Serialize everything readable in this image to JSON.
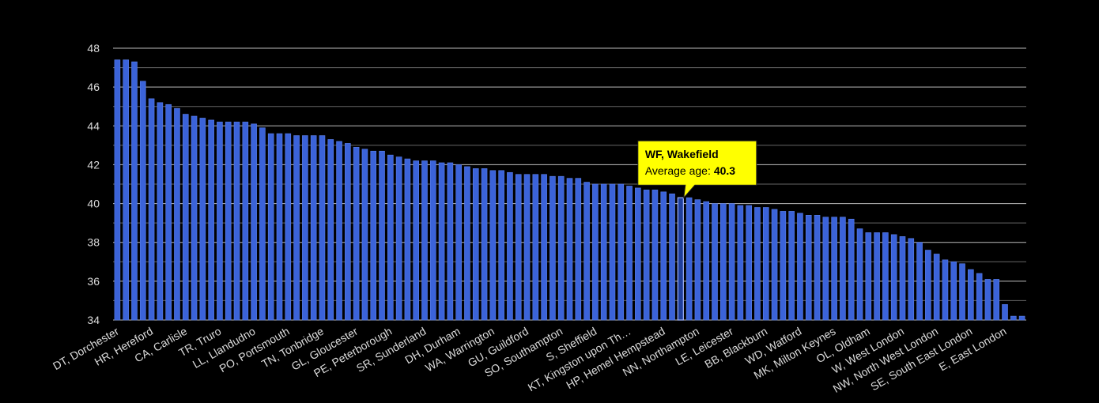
{
  "chart_data": {
    "type": "bar",
    "categories": [
      "DT, Dorchester",
      null,
      null,
      null,
      "HR, Hereford",
      null,
      null,
      null,
      "CA, Carlisle",
      null,
      null,
      null,
      "TR, Truro",
      null,
      null,
      null,
      "LL, Llandudno",
      null,
      null,
      null,
      "PO, Portsmouth",
      null,
      null,
      null,
      "TN, Tonbridge",
      null,
      null,
      null,
      "GL, Gloucester",
      null,
      null,
      null,
      "PE, Peterborough",
      null,
      null,
      null,
      "SR, Sunderland",
      null,
      null,
      null,
      "DH, Durham",
      null,
      null,
      null,
      "WA, Warrington",
      null,
      null,
      null,
      "GU, Guildford",
      null,
      null,
      null,
      "SO, Southampton",
      null,
      null,
      null,
      "S, Sheffield",
      null,
      null,
      null,
      "KT, Kingston upon Th…",
      null,
      null,
      null,
      "HP, Hemel Hempstead",
      null,
      null,
      null,
      "NN, Northampton",
      null,
      null,
      null,
      "LE, Leicester",
      null,
      null,
      null,
      "BB, Blackburn",
      null,
      null,
      null,
      "WD, Watford",
      null,
      null,
      null,
      "MK, Milton Keynes",
      null,
      null,
      null,
      "OL, Oldham",
      null,
      null,
      null,
      "W, West London",
      null,
      null,
      null,
      "NW, North West London",
      null,
      null,
      null,
      "SE, South East London",
      null,
      null,
      null,
      "E, East London",
      null,
      null
    ],
    "values": [
      47.4,
      47.4,
      47.3,
      46.3,
      45.4,
      45.2,
      45.1,
      44.9,
      44.6,
      44.5,
      44.4,
      44.3,
      44.2,
      44.2,
      44.2,
      44.2,
      44.1,
      43.9,
      43.6,
      43.6,
      43.6,
      43.5,
      43.5,
      43.5,
      43.5,
      43.3,
      43.2,
      43.1,
      42.9,
      42.8,
      42.7,
      42.7,
      42.5,
      42.4,
      42.3,
      42.2,
      42.2,
      42.2,
      42.1,
      42.1,
      42.0,
      41.9,
      41.8,
      41.8,
      41.7,
      41.7,
      41.6,
      41.5,
      41.5,
      41.5,
      41.5,
      41.4,
      41.4,
      41.3,
      41.3,
      41.1,
      41.0,
      41.0,
      41.0,
      41.0,
      40.9,
      40.8,
      40.7,
      40.7,
      40.6,
      40.5,
      40.3,
      40.3,
      40.2,
      40.1,
      40.0,
      40.0,
      40.0,
      39.9,
      39.9,
      39.8,
      39.8,
      39.7,
      39.6,
      39.6,
      39.5,
      39.4,
      39.4,
      39.3,
      39.3,
      39.3,
      39.2,
      38.7,
      38.5,
      38.5,
      38.5,
      38.4,
      38.3,
      38.2,
      38.0,
      37.6,
      37.4,
      37.1,
      37.0,
      36.9,
      36.6,
      36.4,
      36.1,
      36.1,
      34.8,
      34.2,
      34.2
    ],
    "color": "#3b63d9",
    "ylim": [
      34,
      48
    ],
    "yticks": [
      34,
      36,
      38,
      40,
      42,
      44,
      46,
      48
    ],
    "minor_yticks": [
      35,
      37,
      39,
      41,
      43,
      45,
      47
    ],
    "grid": true,
    "highlight": {
      "index": 66,
      "title": "WF, Wakefield",
      "label": "Average age:"
    }
  }
}
